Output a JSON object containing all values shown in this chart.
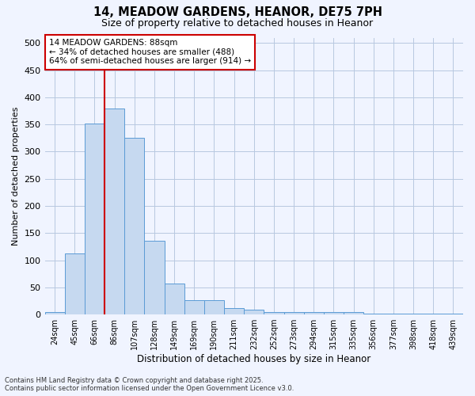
{
  "title_line1": "14, MEADOW GARDENS, HEANOR, DE75 7PH",
  "title_line2": "Size of property relative to detached houses in Heanor",
  "xlabel": "Distribution of detached houses by size in Heanor",
  "ylabel": "Number of detached properties",
  "bar_labels": [
    "24sqm",
    "45sqm",
    "66sqm",
    "86sqm",
    "107sqm",
    "128sqm",
    "149sqm",
    "169sqm",
    "190sqm",
    "211sqm",
    "232sqm",
    "252sqm",
    "273sqm",
    "294sqm",
    "315sqm",
    "335sqm",
    "356sqm",
    "377sqm",
    "398sqm",
    "418sqm",
    "439sqm"
  ],
  "bar_values": [
    5,
    113,
    352,
    380,
    325,
    136,
    57,
    26,
    26,
    12,
    9,
    5,
    5,
    5,
    5,
    5,
    2,
    2,
    2,
    1,
    2
  ],
  "bar_color": "#c6d9f0",
  "bar_edge_color": "#5b9bd5",
  "red_line_x": 2.5,
  "red_line_color": "#cc0000",
  "annotation_text": "14 MEADOW GARDENS: 88sqm\n← 34% of detached houses are smaller (488)\n64% of semi-detached houses are larger (914) →",
  "annotation_box_color": "#ffffff",
  "annotation_box_edge": "#cc0000",
  "ylim": [
    0,
    510
  ],
  "yticks": [
    0,
    50,
    100,
    150,
    200,
    250,
    300,
    350,
    400,
    450,
    500
  ],
  "background_color": "#f0f4ff",
  "plot_bg_color": "#f0f4ff",
  "grid_color": "#b8c8e0",
  "footer_line1": "Contains HM Land Registry data © Crown copyright and database right 2025.",
  "footer_line2": "Contains public sector information licensed under the Open Government Licence v3.0."
}
